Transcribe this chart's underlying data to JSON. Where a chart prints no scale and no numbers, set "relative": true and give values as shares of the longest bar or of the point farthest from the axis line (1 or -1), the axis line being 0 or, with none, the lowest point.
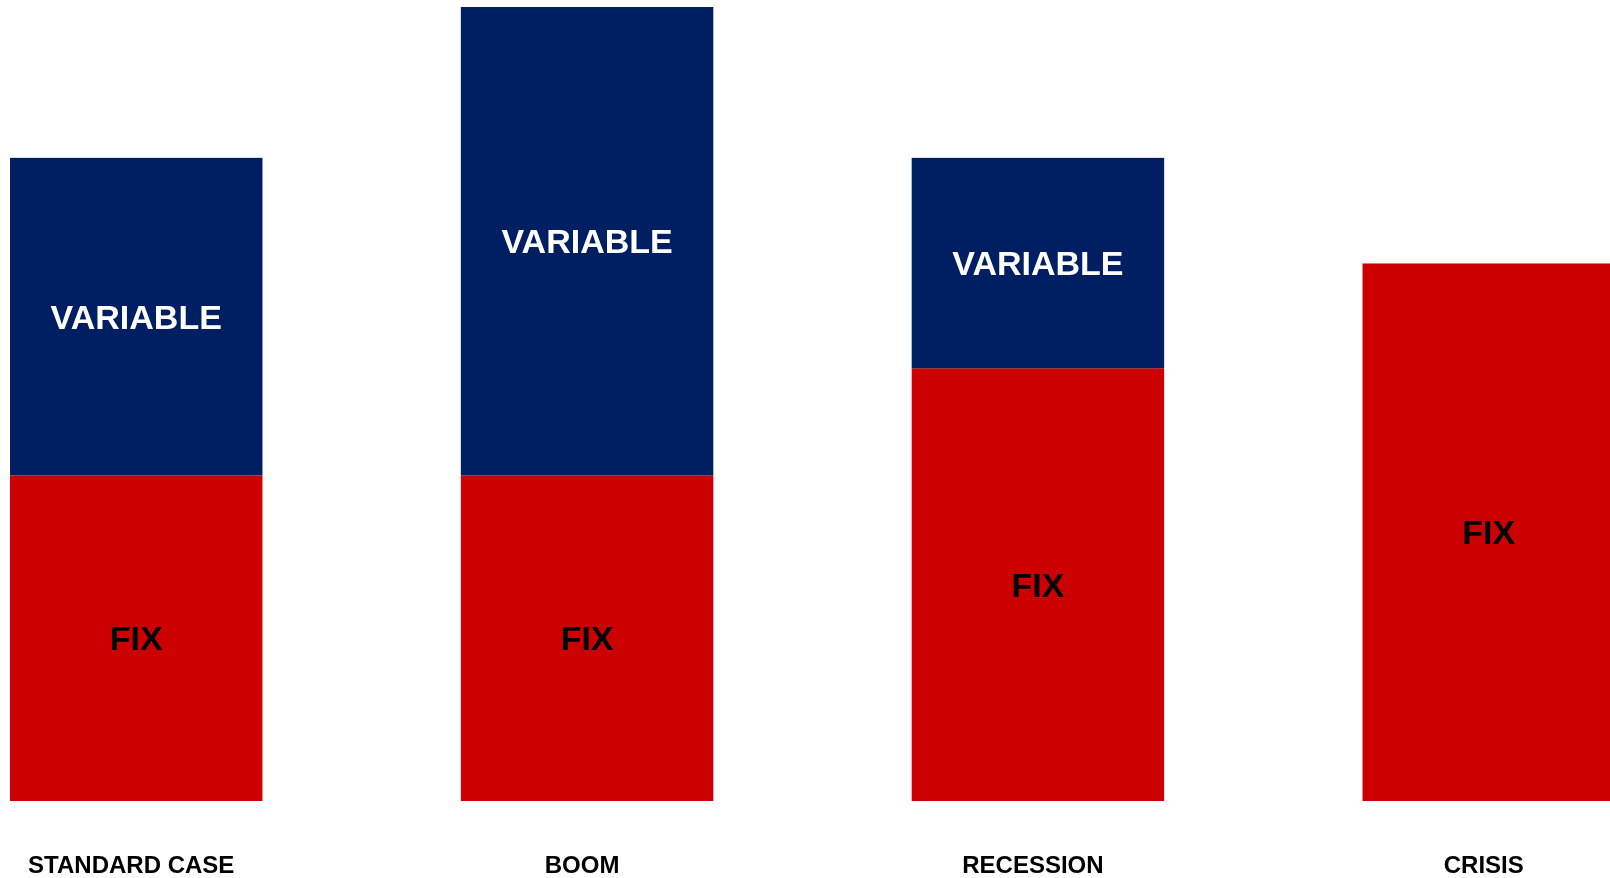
{
  "chart_data": {
    "type": "bar",
    "relative": true,
    "stacked": true,
    "categories": [
      "STANDARD CASE",
      "BOOM",
      "RECESSION",
      "CRISIS"
    ],
    "series": [
      {
        "name": "FIX",
        "color": "#cc0000",
        "values": [
          0.41,
          0.41,
          0.545,
          0.677
        ]
      },
      {
        "name": "VARIABLE",
        "color": "#001e62",
        "values": [
          0.4,
          0.59,
          0.265,
          null
        ]
      }
    ]
  }
}
